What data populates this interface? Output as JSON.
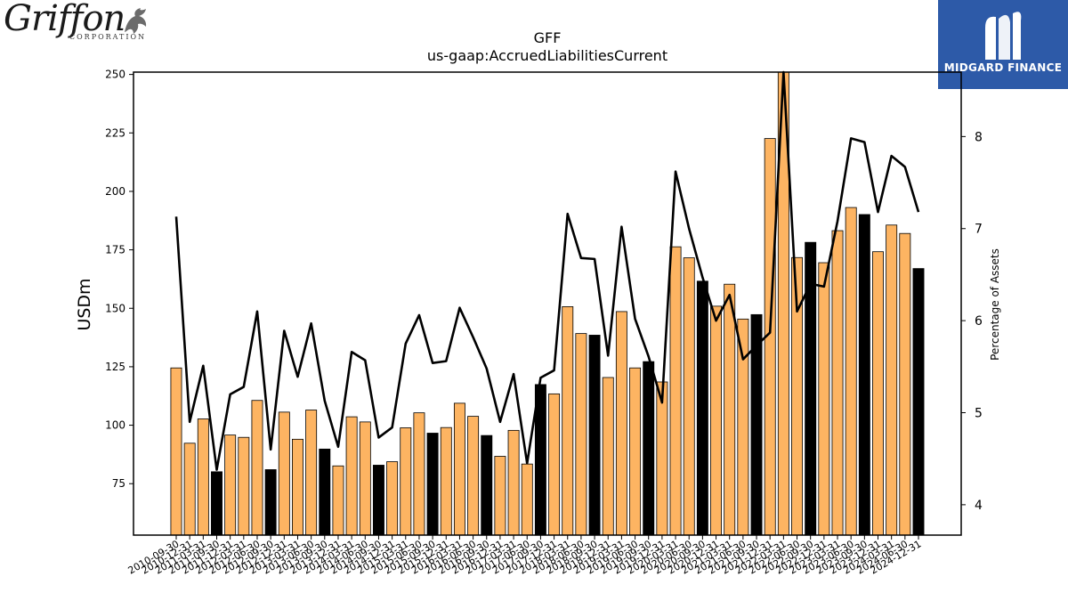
{
  "logos": {
    "left": {
      "word": "Griffon",
      "sub": "CORPORATION",
      "icon": "griffin-icon"
    },
    "right": {
      "text": "MIDGARD FINANCE",
      "icon": "midgard-mark-icon",
      "bg": "#2d5aa8"
    }
  },
  "chart_data": {
    "type": "bar",
    "title": "GFF",
    "subtitle": "us-gaap:AccruedLiabilitiesCurrent",
    "ylabel": "USDm",
    "y2label": "Percentage of Assets",
    "ylim": [
      53,
      251
    ],
    "y2lim": [
      3.67,
      8.7
    ],
    "yticks": [
      75,
      100,
      125,
      150,
      175,
      200,
      225,
      250
    ],
    "y2ticks": [
      4,
      5,
      6,
      7,
      8
    ],
    "bar_colors": {
      "highlight": "#000000",
      "normal": "#fdb462"
    },
    "line_color": "#000000",
    "categories": [
      "2010-09-30",
      "2010-12-31",
      "2011-03-31",
      "2011-09-30",
      "2011-12-31",
      "2012-03-31",
      "2012-06-30",
      "2012-09-30",
      "2012-12-31",
      "2013-03-31",
      "2013-06-30",
      "2013-09-30",
      "2013-12-31",
      "2014-03-31",
      "2014-06-30",
      "2014-09-30",
      "2014-12-31",
      "2015-03-31",
      "2015-06-30",
      "2015-09-30",
      "2015-12-31",
      "2016-03-31",
      "2016-06-30",
      "2016-09-30",
      "2016-12-31",
      "2017-03-31",
      "2017-06-30",
      "2017-09-30",
      "2017-12-31",
      "2018-03-31",
      "2018-06-30",
      "2018-09-30",
      "2018-12-31",
      "2019-03-31",
      "2019-06-30",
      "2019-09-30",
      "2019-12-31",
      "2020-03-31",
      "2020-06-30",
      "2020-09-30",
      "2020-12-31",
      "2021-03-31",
      "2021-06-30",
      "2021-09-30",
      "2021-12-31",
      "2022-03-31",
      "2022-06-30",
      "2022-09-30",
      "2022-12-31",
      "2023-03-31",
      "2023-06-30",
      "2023-09-30",
      "2023-12-31",
      "2024-03-31",
      "2024-06-30",
      "2024-12-31"
    ],
    "tick_labels": [
      "2010-09-30",
      "2010-12-31",
      "2011-03-31",
      "2011-09-30",
      "2011-12-31",
      "2012-03-31",
      "2012-06-30",
      "2012-09-30",
      "2012-12-31",
      "2013-03-31",
      "2013-06-30",
      "2013-09-30",
      "2013-12-31",
      "2014-03-31",
      "2014-06-30",
      "2014-09-30",
      "2014-12-31",
      "2015-03-31",
      "2015-06-30",
      "2015-09-30",
      "2015-12-31",
      "2016-03-31",
      "2016-06-30",
      "2016-09-30",
      "2016-12-31",
      "2017-03-31",
      "2017-06-30",
      "2017-09-30",
      "2017-12-31",
      "2018-03-31",
      "2018-06-30",
      "2018-09-30",
      "2018-12-31",
      "2019-03-31",
      "2019-06-30",
      "2019-09-30",
      "2019-12-31",
      "2020-03-31",
      "2020-06-30",
      "2020-09-30",
      "2020-12-31",
      "2021-03-31",
      "2021-06-30",
      "2021-09-30",
      "2021-12-31",
      "2022-03-31",
      "2022-06-30",
      "2022-09-30",
      "2022-12-31",
      "2023-03-31",
      "2023-06-30",
      "2023-09-30",
      "2023-12-31",
      "2024-03-31",
      "2024-06-30",
      "2024-12-31"
    ],
    "series": [
      {
        "name": "USDm",
        "type": "bar",
        "values": [
          124.5,
          92.3,
          102.7,
          80.1,
          95.8,
          94.8,
          110.6,
          81.0,
          105.6,
          94.0,
          106.5,
          89.8,
          82.6,
          103.6,
          101.4,
          82.9,
          84.4,
          98.9,
          105.3,
          96.6,
          99.0,
          109.4,
          103.8,
          95.6,
          86.7,
          97.8,
          83.4,
          117.4,
          113.4,
          150.7,
          139.2,
          138.5,
          120.4,
          148.6,
          124.5,
          127.2,
          118.5,
          176.3,
          171.6,
          161.6,
          150.9,
          160.3,
          145.4,
          147.3,
          222.6,
          253.0,
          171.7,
          178.2,
          169.5,
          183.2,
          193.1,
          190.1,
          174.2,
          185.6,
          182.0,
          167.0
        ],
        "highlight": [
          false,
          false,
          false,
          true,
          false,
          false,
          false,
          true,
          false,
          false,
          false,
          true,
          false,
          false,
          false,
          true,
          false,
          false,
          false,
          true,
          false,
          false,
          false,
          true,
          false,
          false,
          false,
          true,
          false,
          false,
          false,
          true,
          false,
          false,
          false,
          true,
          false,
          false,
          false,
          true,
          false,
          false,
          false,
          true,
          false,
          false,
          false,
          true,
          false,
          false,
          false,
          true,
          false,
          false,
          false,
          true
        ]
      },
      {
        "name": "Percentage of Assets",
        "type": "line",
        "axis": "right",
        "values": [
          7.13,
          4.9,
          5.51,
          4.38,
          5.2,
          5.28,
          6.1,
          4.6,
          5.89,
          5.39,
          5.97,
          5.13,
          4.63,
          5.66,
          5.57,
          4.73,
          4.84,
          5.75,
          6.06,
          5.54,
          5.56,
          6.14,
          5.82,
          5.48,
          4.9,
          5.42,
          4.45,
          5.38,
          5.46,
          7.16,
          6.68,
          6.67,
          5.62,
          7.02,
          6.02,
          5.61,
          5.11,
          7.62,
          7.0,
          6.47,
          6.0,
          6.28,
          5.58,
          5.73,
          5.87,
          8.72,
          6.1,
          6.4,
          6.37,
          7.08,
          7.98,
          7.94,
          7.18,
          7.79,
          7.67,
          7.18
        ]
      }
    ]
  }
}
